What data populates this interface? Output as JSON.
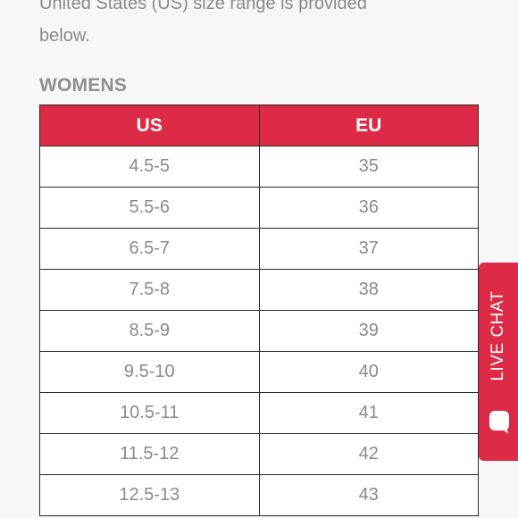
{
  "intro": {
    "line1": "United States (US) size range is provided",
    "line2": "below."
  },
  "section_title": "WOMENS",
  "table": {
    "headers": [
      "US",
      "EU"
    ],
    "rows": [
      {
        "us": "4.5-5",
        "eu": "35"
      },
      {
        "us": "5.5-6",
        "eu": "36"
      },
      {
        "us": "6.5-7",
        "eu": "37"
      },
      {
        "us": "7.5-8",
        "eu": "38"
      },
      {
        "us": "8.5-9",
        "eu": "39"
      },
      {
        "us": "9.5-10",
        "eu": "40"
      },
      {
        "us": "10.5-11",
        "eu": "41"
      },
      {
        "us": "11.5-12",
        "eu": "42"
      },
      {
        "us": "12.5-13",
        "eu": "43"
      }
    ]
  },
  "live_chat": {
    "label": "LIVE CHAT",
    "icon": "chat-bubble-icon"
  },
  "colors": {
    "accent": "#dd2a46",
    "text_muted": "#8a8a8a",
    "background": "#f7f7f7"
  }
}
